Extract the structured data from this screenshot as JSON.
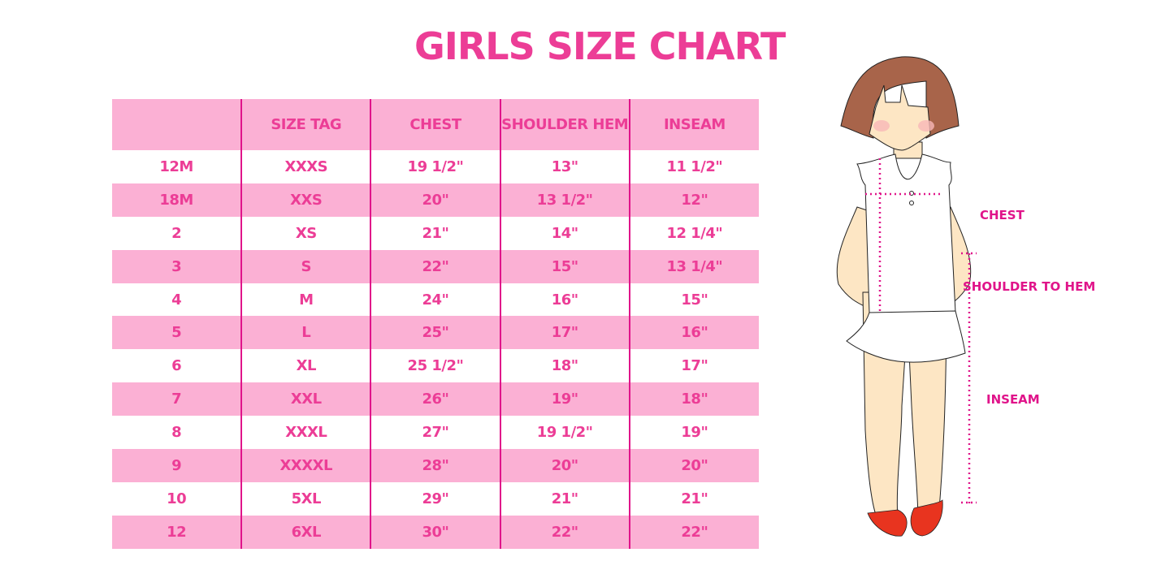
{
  "title": "GIRLS SIZE CHART",
  "table": {
    "headers": [
      "",
      "SIZE TAG",
      "CHEST",
      "SHOULDER HEM",
      "INSEAM"
    ],
    "rows": [
      [
        "12M",
        "XXXS",
        "19 1/2\"",
        "13\"",
        "11 1/2\""
      ],
      [
        "18M",
        "XXS",
        "20\"",
        "13 1/2\"",
        "12\""
      ],
      [
        "2",
        "XS",
        "21\"",
        "14\"",
        "12 1/4\""
      ],
      [
        "3",
        "S",
        "22\"",
        "15\"",
        "13 1/4\""
      ],
      [
        "4",
        "M",
        "24\"",
        "16\"",
        "15\""
      ],
      [
        "5",
        "L",
        "25\"",
        "17\"",
        "16\""
      ],
      [
        "6",
        "XL",
        "25 1/2\"",
        "18\"",
        "17\""
      ],
      [
        "7",
        "XXL",
        "26\"",
        "19\"",
        "18\""
      ],
      [
        "8",
        "XXXL",
        "27\"",
        "19 1/2\"",
        "19\""
      ],
      [
        "9",
        "XXXXL",
        "28\"",
        "20\"",
        "20\""
      ],
      [
        "10",
        "5XL",
        "29\"",
        "21\"",
        "21\""
      ],
      [
        "12",
        "6XL",
        "30\"",
        "22\"",
        "22\""
      ]
    ]
  },
  "illustration": {
    "labels": {
      "chest": "CHEST",
      "shoulder_to_hem": "SHOULDER TO HEM",
      "inseam": "INSEAM"
    }
  },
  "colors": {
    "accent": "#ec3d96",
    "row_pink": "#fbb0d4",
    "divider": "#e0148a"
  }
}
